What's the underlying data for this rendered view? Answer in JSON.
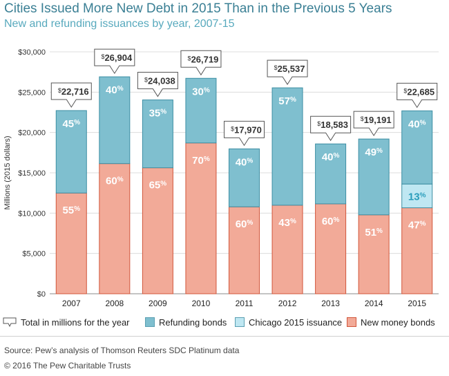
{
  "title": "Cities Issued More New Debt in 2015 Than in the Previous 5 Years",
  "subtitle": "New and refunding issuances by year, 2007-15",
  "source": "Source: Pew’s analysis of Thomson Reuters SDC Platinum data",
  "copyright": "© 2016 The Pew Charitable Trusts",
  "colors": {
    "new_money": "#f2aa98",
    "refunding": "#7fbfcf",
    "chicago": "#bfe7f2",
    "new_money_stroke": "#d1553a",
    "refunding_stroke": "#3c8ea3"
  },
  "legend": {
    "total": "Total in millions for the year",
    "refunding": "Refunding bonds",
    "chicago": "Chicago 2015 issuance",
    "new_money": "New money bonds"
  },
  "chart_data": {
    "type": "bar",
    "stacked": true,
    "categories": [
      "2007",
      "2008",
      "2009",
      "2010",
      "2011",
      "2012",
      "2013",
      "2014",
      "2015"
    ],
    "totals": [
      22716,
      26904,
      24038,
      26719,
      17970,
      25537,
      18583,
      19191,
      22685
    ],
    "total_labels": [
      "22,716",
      "26,904",
      "24,038",
      "26,719",
      "17,970",
      "25,537",
      "18,583",
      "19,191",
      "22,685"
    ],
    "series": [
      {
        "name": "New money bonds",
        "pct": [
          55,
          60,
          65,
          70,
          60,
          43,
          60,
          51,
          47
        ]
      },
      {
        "name": "Chicago 2015 issuance",
        "pct": [
          null,
          null,
          null,
          null,
          null,
          null,
          null,
          null,
          13
        ]
      },
      {
        "name": "Refunding bonds",
        "pct": [
          45,
          40,
          35,
          30,
          40,
          57,
          40,
          49,
          40
        ]
      }
    ],
    "ylabel": "Millions (2015 dollars)",
    "ylim": [
      0,
      30000
    ],
    "yticks": [
      0,
      5000,
      10000,
      15000,
      20000,
      25000,
      30000
    ],
    "ytick_labels": [
      "$0",
      "$5,000",
      "$10,000",
      "$15,000",
      "$20,000",
      "$25,000",
      "$30,000"
    ],
    "grid": true,
    "legend_position": "bottom"
  }
}
